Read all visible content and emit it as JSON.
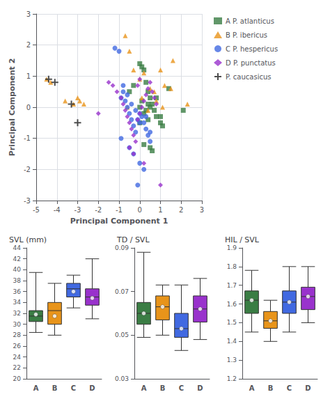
{
  "chart_data": [
    {
      "type": "scatter",
      "xlabel": "Principal Component 1",
      "ylabel": "Principal Component 2",
      "xlim": [
        -5,
        3
      ],
      "xticks": [
        -5,
        -4,
        -3,
        -2,
        -1,
        0,
        1,
        2,
        3
      ],
      "ylim": [
        -3,
        3
      ],
      "yticks": [
        -3,
        -2,
        -1,
        0,
        1,
        2,
        3
      ],
      "grid": true,
      "legend": "right",
      "series": [
        {
          "name": "A P. atlanticus",
          "color": "#3a7d44",
          "marker": "square",
          "x": [
            -0.5,
            -0.3,
            0.0,
            0.1,
            0.2,
            0.3,
            0.4,
            0.5,
            0.6,
            0.7,
            0.8,
            1.0,
            1.1,
            1.4,
            2.1,
            0.0,
            0.2,
            0.4,
            0.5,
            0.6,
            0.1,
            0.3,
            0.5,
            0.8,
            1.0,
            0.2,
            0.0,
            0.4
          ],
          "y": [
            0.5,
            0.7,
            1.4,
            1.3,
            1.2,
            0.8,
            0.5,
            0.3,
            0.1,
            -0.1,
            -0.3,
            -0.5,
            -0.6,
            0.6,
            -0.1,
            0.0,
            -0.2,
            -0.4,
            -1.3,
            -1.4,
            0.2,
            -0.1,
            0.0,
            0.3,
            -0.3,
            -1.2,
            -0.5,
            0.1
          ]
        },
        {
          "name": "B P. ibericus",
          "color": "#e8941a",
          "marker": "triangle",
          "x": [
            -4.5,
            -4.3,
            -3.6,
            -3.2,
            -3.0,
            -2.9,
            -2.7,
            -0.7,
            -0.5,
            -0.3,
            0.0,
            0.2,
            0.5,
            0.7,
            1.0,
            1.2,
            1.5,
            1.6,
            2.3,
            -0.6,
            0.1,
            0.4,
            0.8,
            1.1
          ],
          "y": [
            0.9,
            0.8,
            0.2,
            0.1,
            0.3,
            0.2,
            0.1,
            2.3,
            1.8,
            1.2,
            0.9,
            1.1,
            0.6,
            0.5,
            1.2,
            0.7,
            0.6,
            1.5,
            0.1,
            0.0,
            0.3,
            -0.1,
            0.2,
            0.0
          ]
        },
        {
          "name": "C P. hespericus",
          "color": "#4169e1",
          "marker": "circle",
          "x": [
            -1.2,
            -1.0,
            -0.9,
            -0.8,
            -0.7,
            -0.6,
            -0.5,
            -0.4,
            -0.3,
            -0.2,
            -0.1,
            0.0,
            0.1,
            0.2,
            0.3,
            0.4,
            0.5,
            -0.5,
            -0.3,
            -0.1,
            0.0,
            0.2,
            -0.8,
            -0.6,
            -0.4,
            -0.2,
            0.0,
            0.3,
            0.5,
            -0.9
          ],
          "y": [
            1.9,
            1.8,
            0.3,
            0.5,
            0.2,
            0.0,
            -0.2,
            -0.4,
            -0.6,
            -0.8,
            -0.4,
            -0.2,
            -0.3,
            -0.5,
            -0.7,
            -0.9,
            -1.1,
            -1.3,
            -1.5,
            -2.5,
            -1.8,
            -2.0,
            0.7,
            0.4,
            0.1,
            -0.1,
            -0.5,
            -0.3,
            -0.8,
            -1.0
          ]
        },
        {
          "name": "D P. punctatus",
          "color": "#9932cc",
          "marker": "diamond",
          "x": [
            -2.0,
            -1.5,
            -1.3,
            -1.1,
            -0.9,
            -0.8,
            -0.7,
            -0.6,
            -0.5,
            -0.4,
            -0.3,
            -0.2,
            -0.1,
            0.0,
            0.1,
            0.2,
            0.3,
            0.4,
            0.5,
            0.6,
            0.7,
            0.8,
            1.0,
            -0.3,
            -0.5,
            0.2,
            0.0,
            -0.1
          ],
          "y": [
            -0.2,
            0.8,
            0.7,
            0.5,
            0.3,
            0.1,
            -0.1,
            -0.3,
            -0.5,
            -0.7,
            -0.9,
            -1.1,
            -0.4,
            -0.2,
            0.0,
            0.2,
            0.4,
            0.6,
            0.8,
            0.5,
            0.3,
            0.1,
            -2.5,
            -1.5,
            -1.3,
            -1.8,
            0.9,
            0.7
          ]
        },
        {
          "name": "P. caucasicus",
          "color": "#222222",
          "marker": "plus",
          "x": [
            -4.4,
            -4.1,
            -3.3,
            -3.0
          ],
          "y": [
            0.9,
            0.8,
            0.1,
            -0.5
          ]
        }
      ]
    },
    {
      "type": "box",
      "title": "SVL (mm)",
      "categories": [
        "A",
        "B",
        "C",
        "D"
      ],
      "colors": [
        "#3a7d44",
        "#e8941a",
        "#4169e1",
        "#9932cc"
      ],
      "ylim": [
        20,
        44
      ],
      "yticks": [
        20,
        22,
        24,
        26,
        28,
        30,
        32,
        34,
        36,
        38,
        40,
        42,
        44
      ],
      "grid": false,
      "whislo": [
        28.5,
        28.0,
        33.0,
        31.0
      ],
      "q1": [
        30.5,
        30.0,
        35.0,
        33.5
      ],
      "med": [
        31.5,
        32.5,
        36.5,
        35.0
      ],
      "mean": [
        31.8,
        31.5,
        36.0,
        34.8
      ],
      "q3": [
        32.5,
        34.0,
        37.5,
        36.5
      ],
      "whishi": [
        39.5,
        37.5,
        39.0,
        42.0
      ]
    },
    {
      "type": "box",
      "title": "TD / SVL",
      "categories": [
        "A",
        "B",
        "C",
        "D"
      ],
      "colors": [
        "#3a7d44",
        "#e8941a",
        "#4169e1",
        "#9932cc"
      ],
      "ylim": [
        0.03,
        0.09
      ],
      "yticks": [
        0.03,
        0.05,
        0.07,
        0.09
      ],
      "grid": false,
      "whislo": [
        0.049,
        0.05,
        0.043,
        0.048
      ],
      "q1": [
        0.055,
        0.057,
        0.049,
        0.056
      ],
      "med": [
        0.06,
        0.063,
        0.053,
        0.062
      ],
      "mean": [
        0.06,
        0.063,
        0.053,
        0.062
      ],
      "q3": [
        0.065,
        0.068,
        0.06,
        0.068
      ],
      "whishi": [
        0.088,
        0.073,
        0.073,
        0.076
      ]
    },
    {
      "type": "box",
      "title": "HIL / SVL",
      "categories": [
        "A",
        "B",
        "C",
        "D"
      ],
      "colors": [
        "#3a7d44",
        "#e8941a",
        "#4169e1",
        "#9932cc"
      ],
      "ylim": [
        1.2,
        1.9
      ],
      "yticks": [
        1.2,
        1.3,
        1.4,
        1.5,
        1.6,
        1.7,
        1.8,
        1.9
      ],
      "grid": false,
      "whislo": [
        1.45,
        1.4,
        1.45,
        1.5
      ],
      "q1": [
        1.55,
        1.47,
        1.55,
        1.57
      ],
      "med": [
        1.62,
        1.51,
        1.61,
        1.64
      ],
      "mean": [
        1.62,
        1.51,
        1.61,
        1.64
      ],
      "q3": [
        1.67,
        1.56,
        1.67,
        1.69
      ],
      "whishi": [
        1.78,
        1.62,
        1.8,
        1.8
      ]
    }
  ]
}
